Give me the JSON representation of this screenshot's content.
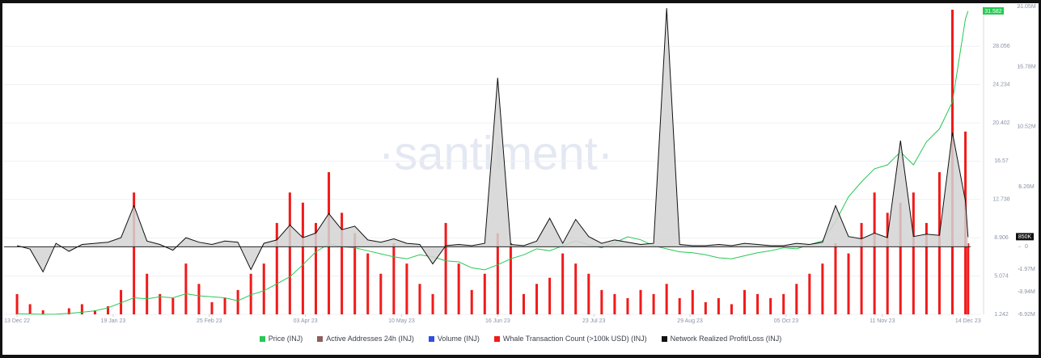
{
  "chart_data": {
    "type": "combo",
    "watermark": "·santiment·",
    "x": [
      "2022-12-13",
      "2022-12-18",
      "2022-12-23",
      "2022-12-28",
      "2023-01-02",
      "2023-01-07",
      "2023-01-12",
      "2023-01-17",
      "2023-01-22",
      "2023-01-27",
      "2023-02-01",
      "2023-02-06",
      "2023-02-11",
      "2023-02-16",
      "2023-02-21",
      "2023-02-26",
      "2023-03-03",
      "2023-03-08",
      "2023-03-13",
      "2023-03-18",
      "2023-03-23",
      "2023-03-28",
      "2023-04-02",
      "2023-04-07",
      "2023-04-12",
      "2023-04-17",
      "2023-04-22",
      "2023-04-27",
      "2023-05-02",
      "2023-05-07",
      "2023-05-12",
      "2023-05-17",
      "2023-05-22",
      "2023-05-27",
      "2023-06-01",
      "2023-06-06",
      "2023-06-11",
      "2023-06-16",
      "2023-06-21",
      "2023-06-26",
      "2023-07-01",
      "2023-07-06",
      "2023-07-11",
      "2023-07-16",
      "2023-07-21",
      "2023-07-26",
      "2023-07-31",
      "2023-08-05",
      "2023-08-10",
      "2023-08-15",
      "2023-08-20",
      "2023-08-25",
      "2023-08-30",
      "2023-09-04",
      "2023-09-09",
      "2023-09-14",
      "2023-09-19",
      "2023-09-24",
      "2023-09-29",
      "2023-10-04",
      "2023-10-09",
      "2023-10-14",
      "2023-10-19",
      "2023-10-24",
      "2023-10-29",
      "2023-11-03",
      "2023-11-08",
      "2023-11-13",
      "2023-11-18",
      "2023-11-23",
      "2023-11-28",
      "2023-12-03",
      "2023-12-08",
      "2023-12-13",
      "2023-12-14"
    ],
    "xlim": [
      "2022-12-08",
      "2023-12-15"
    ],
    "xticks": [
      {
        "value": "2022-12-13",
        "label": "13 Dec 22"
      },
      {
        "value": "2023-01-19",
        "label": "19 Jan 23"
      },
      {
        "value": "2023-02-25",
        "label": "25 Feb 23"
      },
      {
        "value": "2023-04-03",
        "label": "03 Apr 23"
      },
      {
        "value": "2023-05-10",
        "label": "10 May 23"
      },
      {
        "value": "2023-06-16",
        "label": "16 Jun 23"
      },
      {
        "value": "2023-07-23",
        "label": "23 Jul 23"
      },
      {
        "value": "2023-08-29",
        "label": "29 Aug 23"
      },
      {
        "value": "2023-10-05",
        "label": "05 Oct 23"
      },
      {
        "value": "2023-11-11",
        "label": "11 Nov 23"
      },
      {
        "value": "2023-12-14",
        "label": "14 Dec 23"
      }
    ],
    "ylim": [
      1.242,
      32.04
    ],
    "yticks": [
      1.242,
      5.074,
      8.906,
      12.738,
      16.57,
      20.402,
      24.234,
      28.056
    ],
    "y2lim": [
      -5920000,
      21050000
    ],
    "y2ticks": [
      {
        "value": -5920000,
        "label": "-5.92M"
      },
      {
        "value": -3940000,
        "label": "-3.94M"
      },
      {
        "value": -1970000,
        "label": "-1.97M"
      },
      0,
      {
        "value": 5260000,
        "label": "5.26M"
      },
      {
        "value": 10520000,
        "label": "10.52M"
      },
      {
        "value": 15780000,
        "label": "15.78M"
      },
      {
        "value": 21050000,
        "label": "21.05M"
      }
    ],
    "grid": true,
    "series": [
      {
        "name": "Price (INJ)",
        "type": "line",
        "color": "#26c953",
        "axis": "y",
        "values": [
          1.3,
          1.28,
          1.25,
          1.27,
          1.35,
          1.45,
          1.6,
          1.9,
          2.4,
          2.9,
          2.8,
          3.0,
          2.9,
          3.3,
          3.1,
          3.0,
          2.9,
          2.6,
          3.2,
          3.6,
          4.3,
          5.0,
          6.2,
          7.5,
          8.3,
          8.0,
          7.9,
          7.6,
          7.3,
          7.0,
          6.8,
          7.2,
          7.0,
          6.6,
          6.5,
          5.9,
          5.7,
          6.2,
          6.8,
          7.2,
          7.8,
          7.6,
          8.1,
          8.6,
          8.2,
          7.9,
          8.4,
          9.0,
          8.7,
          8.1,
          7.8,
          7.5,
          7.4,
          7.2,
          6.9,
          6.8,
          7.1,
          7.4,
          7.6,
          7.9,
          7.8,
          8.2,
          8.6,
          10.5,
          13.0,
          14.5,
          15.8,
          16.2,
          17.5,
          16.2,
          18.5,
          19.8,
          22.5,
          30.8,
          31.582
        ]
      },
      {
        "name": "Active Addresses 24h (INJ)",
        "color": "#8d5e5e"
      },
      {
        "name": "Volume (INJ)",
        "color": "#2f4fe0"
      },
      {
        "name": "Whale Transaction Count (>100k USD) (INJ)",
        "type": "bar",
        "color": "#f11a1a",
        "values": [
          10,
          5,
          2,
          0,
          3,
          5,
          2,
          4,
          12,
          60,
          20,
          10,
          8,
          25,
          15,
          6,
          8,
          12,
          20,
          25,
          45,
          60,
          55,
          45,
          70,
          50,
          40,
          30,
          20,
          35,
          25,
          15,
          10,
          45,
          25,
          12,
          20,
          40,
          35,
          10,
          15,
          18,
          30,
          25,
          20,
          12,
          10,
          8,
          12,
          10,
          15,
          8,
          12,
          6,
          8,
          5,
          12,
          10,
          8,
          10,
          15,
          20,
          25,
          35,
          30,
          45,
          60,
          50,
          55,
          60,
          45,
          70,
          150,
          90,
          35
        ]
      },
      {
        "name": "Network Realized Profit/Loss (INJ)",
        "type": "area",
        "color": "#111111",
        "axis": "y2",
        "values": [
          100000,
          -200000,
          -2200000,
          300000,
          -400000,
          200000,
          300000,
          400000,
          800000,
          3600000,
          500000,
          200000,
          -300000,
          800000,
          400000,
          200000,
          500000,
          400000,
          -2000000,
          300000,
          600000,
          1900000,
          800000,
          1200000,
          2900000,
          1500000,
          1800000,
          600000,
          400000,
          700000,
          300000,
          200000,
          -1500000,
          100000,
          200000,
          100000,
          300000,
          14800000,
          200000,
          100000,
          500000,
          2500000,
          300000,
          2400000,
          900000,
          300000,
          600000,
          400000,
          200000,
          300000,
          20900000,
          200000,
          100000,
          100000,
          200000,
          100000,
          300000,
          200000,
          100000,
          100000,
          300000,
          200000,
          400000,
          3600000,
          900000,
          700000,
          1200000,
          800000,
          9300000,
          900000,
          1100000,
          1000000,
          10000000,
          4000000,
          850000
        ],
        "value_labels": [
          null,
          null,
          null,
          null,
          null,
          null,
          null,
          null,
          null,
          null,
          null,
          null,
          null,
          null,
          null,
          null,
          null,
          null,
          null,
          null,
          null,
          null,
          null,
          null,
          null,
          null,
          null,
          null,
          null,
          null,
          null,
          null,
          null,
          null,
          null,
          null,
          null,
          null,
          null,
          null,
          null,
          null,
          null,
          null,
          null,
          null,
          null,
          null,
          null,
          null,
          null,
          null,
          null,
          null,
          null,
          null,
          null,
          null,
          null,
          null,
          null,
          null,
          null,
          null,
          null,
          null,
          null,
          null,
          null,
          null,
          null,
          null,
          null,
          null,
          "850K"
        ]
      }
    ]
  }
}
